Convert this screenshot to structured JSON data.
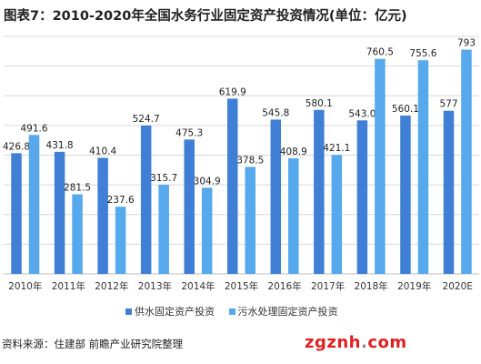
{
  "title": "图表7：2010-2020年全国水务行业固定资产投资情况(单位：亿元)",
  "source": "资料来源：住建部 前瞻产业研究院整理",
  "watermark": {
    "text": "zgznh",
    "dot": ".",
    "suffix": "com"
  },
  "colors": {
    "supply": "#3f7fd6",
    "sewage": "#55a9ec",
    "grid": "#d9d9d9"
  },
  "chart_data": {
    "type": "bar",
    "title": "图表7：2010-2020年全国水务行业固定资产投资情况(单位：亿元)",
    "categories": [
      "2010年",
      "2011年",
      "2012年",
      "2013年",
      "2014年",
      "2015年",
      "2016年",
      "2017年",
      "2018年",
      "2019年",
      "2020E"
    ],
    "series": [
      {
        "name": "供水固定资产投资",
        "values": [
          426.8,
          431.8,
          410.4,
          524.7,
          475.3,
          619.9,
          545.8,
          580.1,
          543.0,
          560.1,
          577
        ]
      },
      {
        "name": "污水处理固定资产投资",
        "values": [
          491.6,
          281.5,
          237.6,
          315.7,
          304.9,
          378.5,
          408.9,
          421.1,
          760.5,
          755.6,
          793
        ]
      }
    ],
    "labels": [
      [
        "426.8",
        "431.8",
        "410.4",
        "524.7",
        "475.3",
        "619.9",
        "545.8",
        "580.1",
        "543.0",
        "560.1",
        "577"
      ],
      [
        "491.6",
        "281.5",
        "237.6",
        "315.7",
        "304.9",
        "378.5",
        "408.9",
        "421.1",
        "760.5",
        "755.6",
        "793"
      ]
    ],
    "ylim": [
      0,
      840
    ],
    "grid": true,
    "legend_position": "bottom"
  }
}
